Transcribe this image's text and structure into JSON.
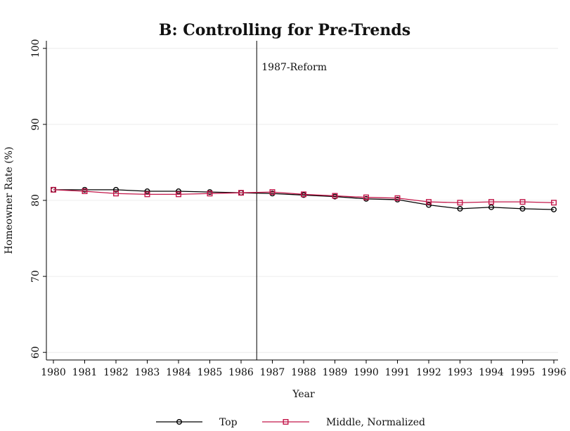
{
  "chart_data": {
    "type": "line",
    "title": "B: Controlling for Pre-Trends",
    "xlabel": "Year",
    "ylabel": "Homeowner Rate (%)",
    "ylim": [
      59,
      101
    ],
    "yticks": [
      60,
      70,
      80,
      90,
      100
    ],
    "grid": true,
    "legend_position": "bottom",
    "x": [
      1980,
      1981,
      1982,
      1983,
      1984,
      1985,
      1986,
      1987,
      1988,
      1989,
      1990,
      1991,
      1992,
      1993,
      1994,
      1995,
      1996
    ],
    "series": [
      {
        "name": "Top",
        "color": "#000000",
        "marker": "circle",
        "values": [
          81.4,
          81.4,
          81.4,
          81.2,
          81.2,
          81.1,
          81.0,
          80.9,
          80.7,
          80.5,
          80.2,
          80.1,
          79.4,
          78.9,
          79.1,
          78.9,
          78.8
        ]
      },
      {
        "name": "Middle, Normalized",
        "color": "#c3174a",
        "marker": "square",
        "values": [
          81.4,
          81.2,
          80.9,
          80.8,
          80.8,
          80.9,
          81.0,
          81.1,
          80.8,
          80.6,
          80.4,
          80.3,
          79.8,
          79.7,
          79.8,
          79.8,
          79.7
        ]
      }
    ],
    "annotations": [
      {
        "label": "1987-Reform",
        "type": "vline",
        "x_between": [
          1986,
          1987
        ]
      }
    ]
  }
}
